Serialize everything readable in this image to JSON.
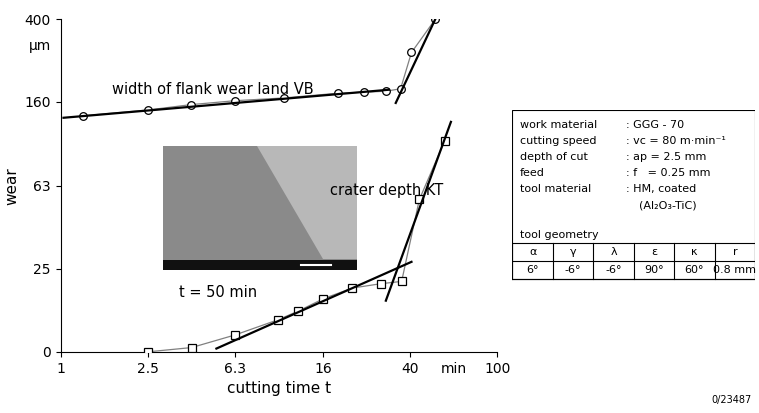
{
  "chart_data": {
    "type": "line",
    "x_label": "cutting time t",
    "y_label": "wear",
    "x_unit_label": "min",
    "y_unit_label": "µm",
    "log": true,
    "grid": false,
    "xlim": [
      1,
      100
    ],
    "xticks": [
      1,
      2.5,
      6.3,
      16,
      40,
      100
    ],
    "ylim": [
      0,
      400
    ],
    "yticks": [
      0,
      25,
      63,
      160,
      400
    ],
    "series": [
      {
        "name": "width of flank wear land VB",
        "color": "#000000",
        "marker": "circle",
        "x": [
          1.27,
          2.5,
          3.94,
          6.3,
          10.5,
          18.6,
          24.6,
          30.9,
          36.1,
          40.5,
          52
        ],
        "values": [
          137,
          146,
          155,
          162,
          167,
          176,
          178,
          180,
          185,
          277,
          400
        ],
        "trend_lines": [
          {
            "x": [
              1.03,
              31.9
            ],
            "values": [
              134,
              183
            ]
          },
          {
            "x": [
              34.3,
              52
            ],
            "values": [
              158,
              400
            ]
          }
        ]
      },
      {
        "name": "crater depth KT",
        "color": "#000000",
        "marker": "square",
        "x": [
          2.5,
          3.98,
          6.3,
          9.85,
          12.2,
          16,
          21.7,
          29.3,
          36.5,
          44,
          57.6
        ],
        "values": [
          0,
          1.3,
          5.1,
          9.6,
          12.2,
          16,
          19.2,
          20.5,
          21.2,
          54,
          104
        ],
        "trend_lines": [
          {
            "x": [
              5.17,
              40.5
            ],
            "values": [
              1,
              27
            ]
          },
          {
            "x": [
              30.9,
              61.4
            ],
            "values": [
              15.4,
              128
            ]
          }
        ]
      }
    ],
    "annotations": [
      "t = 50 min"
    ]
  },
  "parameters": {
    "rows": [
      [
        "work material",
        ": GGG - 70"
      ],
      [
        "cutting speed",
        ": vc = 80 m·min⁻¹"
      ],
      [
        "depth of cut",
        ": ap = 2.5 mm"
      ],
      [
        "feed",
        ": f   = 0.25 mm"
      ],
      [
        "tool material",
        ": HM, coated",
        "(Al₂O₃-TiC)"
      ]
    ]
  },
  "tool_geometry": {
    "title": "tool geometry",
    "header": [
      "α",
      "γ",
      "λ",
      "ε",
      "κ",
      "r"
    ],
    "values": [
      "6°",
      "-6°",
      "-6°",
      "90°",
      "60°",
      "0.8 mm"
    ]
  },
  "figure_id": "0/23487"
}
